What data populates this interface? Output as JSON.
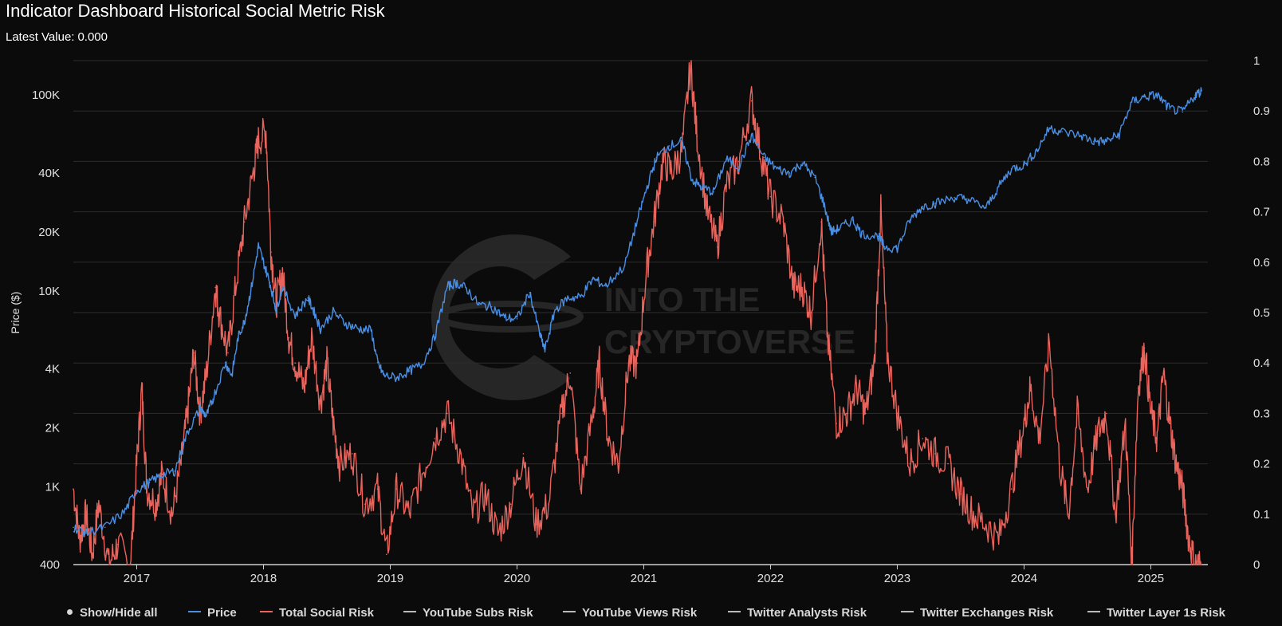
{
  "title": "Indicator Dashboard Historical Social Metric Risk",
  "latest_label": "Latest Value:",
  "latest_value": "0.000",
  "watermark": {
    "line1": "INTO THE",
    "line2": "CRYPTOVERSE"
  },
  "legend": {
    "show_hide_all": "Show/Hide all",
    "items": [
      {
        "label": "Price",
        "color": "#4a8fe4"
      },
      {
        "label": "Total Social Risk",
        "color": "#e9645c"
      },
      {
        "label": "YouTube Subs Risk",
        "color": "#bbbbbb"
      },
      {
        "label": "YouTube Views Risk",
        "color": "#bbbbbb"
      },
      {
        "label": "Twitter Analysts Risk",
        "color": "#bbbbbb"
      },
      {
        "label": "Twitter Exchanges Risk",
        "color": "#bbbbbb"
      },
      {
        "label": "Twitter Layer 1s Risk",
        "color": "#bbbbbb"
      }
    ]
  },
  "colors": {
    "background": "#0b0b0b",
    "grid": "#2c2c2c",
    "axis_text": "#e0e0e0",
    "price": "#4a8fe4",
    "risk": "#e9645c"
  },
  "chart_data": {
    "type": "line",
    "xlabel": "",
    "ylabel_left": "Price ($)",
    "ylabel_right": "",
    "x_tick_labels": [
      "2017",
      "2018",
      "2019",
      "2020",
      "2021",
      "2022",
      "2023",
      "2024",
      "2025"
    ],
    "x_range": [
      2016.5,
      2025.45
    ],
    "left_axis": {
      "scale": "log",
      "range": [
        400,
        150000
      ],
      "ticks": [
        {
          "value": 400,
          "label": "400"
        },
        {
          "value": 1000,
          "label": "1K"
        },
        {
          "value": 2000,
          "label": "2K"
        },
        {
          "value": 4000,
          "label": "4K"
        },
        {
          "value": 10000,
          "label": "10K"
        },
        {
          "value": 20000,
          "label": "20K"
        },
        {
          "value": 40000,
          "label": "40K"
        },
        {
          "value": 100000,
          "label": "100K"
        }
      ]
    },
    "right_axis": {
      "scale": "linear",
      "range": [
        0,
        1
      ],
      "ticks": [
        {
          "value": 0,
          "label": "0"
        },
        {
          "value": 0.1,
          "label": "0.1"
        },
        {
          "value": 0.2,
          "label": "0.2"
        },
        {
          "value": 0.3,
          "label": "0.3"
        },
        {
          "value": 0.4,
          "label": "0.4"
        },
        {
          "value": 0.5,
          "label": "0.5"
        },
        {
          "value": 0.6,
          "label": "0.6"
        },
        {
          "value": 0.7,
          "label": "0.7"
        },
        {
          "value": 0.8,
          "label": "0.8"
        },
        {
          "value": 0.9,
          "label": "0.9"
        },
        {
          "value": 1,
          "label": "1"
        }
      ]
    },
    "grid": true,
    "series": [
      {
        "name": "Price",
        "axis": "left",
        "points": [
          [
            2016.5,
            620
          ],
          [
            2016.6,
            580
          ],
          [
            2016.75,
            620
          ],
          [
            2016.9,
            740
          ],
          [
            2017.0,
            960
          ],
          [
            2017.1,
            1050
          ],
          [
            2017.2,
            1150
          ],
          [
            2017.3,
            1200
          ],
          [
            2017.4,
            1900
          ],
          [
            2017.5,
            2500
          ],
          [
            2017.55,
            2300
          ],
          [
            2017.6,
            2800
          ],
          [
            2017.7,
            4300
          ],
          [
            2017.75,
            3700
          ],
          [
            2017.8,
            5800
          ],
          [
            2017.85,
            7000
          ],
          [
            2017.9,
            10000
          ],
          [
            2017.96,
            17000
          ],
          [
            2018.0,
            14000
          ],
          [
            2018.05,
            11000
          ],
          [
            2018.1,
            8000
          ],
          [
            2018.15,
            10500
          ],
          [
            2018.25,
            7500
          ],
          [
            2018.35,
            9200
          ],
          [
            2018.4,
            7800
          ],
          [
            2018.45,
            6400
          ],
          [
            2018.55,
            7800
          ],
          [
            2018.65,
            6800
          ],
          [
            2018.75,
            6400
          ],
          [
            2018.85,
            6300
          ],
          [
            2018.9,
            4300
          ],
          [
            2018.95,
            3700
          ],
          [
            2019.05,
            3600
          ],
          [
            2019.15,
            3900
          ],
          [
            2019.25,
            4200
          ],
          [
            2019.35,
            5800
          ],
          [
            2019.45,
            10500
          ],
          [
            2019.52,
            11000
          ],
          [
            2019.6,
            10300
          ],
          [
            2019.7,
            8500
          ],
          [
            2019.8,
            8300
          ],
          [
            2019.9,
            7300
          ],
          [
            2020.0,
            7200
          ],
          [
            2020.1,
            9800
          ],
          [
            2020.18,
            6000
          ],
          [
            2020.22,
            5000
          ],
          [
            2020.3,
            8000
          ],
          [
            2020.4,
            9200
          ],
          [
            2020.5,
            9300
          ],
          [
            2020.6,
            11500
          ],
          [
            2020.7,
            10600
          ],
          [
            2020.85,
            13500
          ],
          [
            2020.95,
            23000
          ],
          [
            2021.02,
            33000
          ],
          [
            2021.1,
            48000
          ],
          [
            2021.2,
            55000
          ],
          [
            2021.3,
            58000
          ],
          [
            2021.38,
            37000
          ],
          [
            2021.45,
            34000
          ],
          [
            2021.55,
            32000
          ],
          [
            2021.65,
            47000
          ],
          [
            2021.75,
            43000
          ],
          [
            2021.85,
            62000
          ],
          [
            2021.95,
            48000
          ],
          [
            2022.05,
            42000
          ],
          [
            2022.15,
            40000
          ],
          [
            2022.25,
            45000
          ],
          [
            2022.35,
            38000
          ],
          [
            2022.42,
            28000
          ],
          [
            2022.48,
            20000
          ],
          [
            2022.55,
            21000
          ],
          [
            2022.65,
            23000
          ],
          [
            2022.72,
            19500
          ],
          [
            2022.85,
            19000
          ],
          [
            2022.9,
            16800
          ],
          [
            2023.0,
            16500
          ],
          [
            2023.1,
            23000
          ],
          [
            2023.2,
            27000
          ],
          [
            2023.3,
            28000
          ],
          [
            2023.45,
            30000
          ],
          [
            2023.55,
            29500
          ],
          [
            2023.7,
            26500
          ],
          [
            2023.8,
            34000
          ],
          [
            2023.9,
            42000
          ],
          [
            2024.0,
            44000
          ],
          [
            2024.1,
            52000
          ],
          [
            2024.2,
            68000
          ],
          [
            2024.3,
            65000
          ],
          [
            2024.45,
            62000
          ],
          [
            2024.55,
            58000
          ],
          [
            2024.65,
            58000
          ],
          [
            2024.75,
            63000
          ],
          [
            2024.85,
            92000
          ],
          [
            2024.95,
            98000
          ],
          [
            2025.05,
            100000
          ],
          [
            2025.15,
            85000
          ],
          [
            2025.25,
            82000
          ],
          [
            2025.35,
            100000
          ],
          [
            2025.4,
            105000
          ]
        ]
      },
      {
        "name": "Total Social Risk",
        "axis": "right",
        "points": [
          [
            2016.5,
            0.15
          ],
          [
            2016.55,
            0.05
          ],
          [
            2016.6,
            0.1
          ],
          [
            2016.65,
            0.02
          ],
          [
            2016.7,
            0.12
          ],
          [
            2016.78,
            0.0
          ],
          [
            2016.85,
            0.04
          ],
          [
            2016.95,
            0.0
          ],
          [
            2017.0,
            0.2
          ],
          [
            2017.04,
            0.35
          ],
          [
            2017.08,
            0.15
          ],
          [
            2017.15,
            0.12
          ],
          [
            2017.2,
            0.18
          ],
          [
            2017.28,
            0.1
          ],
          [
            2017.35,
            0.2
          ],
          [
            2017.4,
            0.3
          ],
          [
            2017.45,
            0.42
          ],
          [
            2017.5,
            0.3
          ],
          [
            2017.55,
            0.38
          ],
          [
            2017.62,
            0.55
          ],
          [
            2017.65,
            0.5
          ],
          [
            2017.72,
            0.42
          ],
          [
            2017.78,
            0.55
          ],
          [
            2017.85,
            0.68
          ],
          [
            2017.92,
            0.78
          ],
          [
            2017.96,
            0.84
          ],
          [
            2018.02,
            0.86
          ],
          [
            2018.06,
            0.62
          ],
          [
            2018.1,
            0.52
          ],
          [
            2018.15,
            0.58
          ],
          [
            2018.2,
            0.45
          ],
          [
            2018.25,
            0.4
          ],
          [
            2018.32,
            0.35
          ],
          [
            2018.38,
            0.45
          ],
          [
            2018.45,
            0.32
          ],
          [
            2018.5,
            0.4
          ],
          [
            2018.55,
            0.28
          ],
          [
            2018.6,
            0.2
          ],
          [
            2018.7,
            0.22
          ],
          [
            2018.8,
            0.12
          ],
          [
            2018.9,
            0.15
          ],
          [
            2018.97,
            0.02
          ],
          [
            2019.05,
            0.15
          ],
          [
            2019.15,
            0.1
          ],
          [
            2019.25,
            0.18
          ],
          [
            2019.35,
            0.25
          ],
          [
            2019.45,
            0.3
          ],
          [
            2019.55,
            0.22
          ],
          [
            2019.65,
            0.1
          ],
          [
            2019.75,
            0.14
          ],
          [
            2019.85,
            0.06
          ],
          [
            2019.95,
            0.12
          ],
          [
            2020.05,
            0.22
          ],
          [
            2020.15,
            0.08
          ],
          [
            2020.25,
            0.12
          ],
          [
            2020.35,
            0.3
          ],
          [
            2020.42,
            0.38
          ],
          [
            2020.5,
            0.15
          ],
          [
            2020.6,
            0.3
          ],
          [
            2020.65,
            0.4
          ],
          [
            2020.72,
            0.25
          ],
          [
            2020.8,
            0.2
          ],
          [
            2020.88,
            0.4
          ],
          [
            2020.95,
            0.4
          ],
          [
            2021.02,
            0.58
          ],
          [
            2021.08,
            0.68
          ],
          [
            2021.15,
            0.8
          ],
          [
            2021.22,
            0.78
          ],
          [
            2021.3,
            0.82
          ],
          [
            2021.37,
            0.99
          ],
          [
            2021.42,
            0.85
          ],
          [
            2021.5,
            0.7
          ],
          [
            2021.58,
            0.63
          ],
          [
            2021.65,
            0.75
          ],
          [
            2021.75,
            0.8
          ],
          [
            2021.85,
            0.92
          ],
          [
            2021.92,
            0.82
          ],
          [
            2022.0,
            0.73
          ],
          [
            2022.1,
            0.68
          ],
          [
            2022.18,
            0.55
          ],
          [
            2022.25,
            0.55
          ],
          [
            2022.32,
            0.5
          ],
          [
            2022.4,
            0.68
          ],
          [
            2022.45,
            0.45
          ],
          [
            2022.52,
            0.28
          ],
          [
            2022.6,
            0.3
          ],
          [
            2022.68,
            0.35
          ],
          [
            2022.75,
            0.3
          ],
          [
            2022.82,
            0.4
          ],
          [
            2022.87,
            0.7
          ],
          [
            2022.92,
            0.42
          ],
          [
            2023.0,
            0.3
          ],
          [
            2023.1,
            0.2
          ],
          [
            2023.2,
            0.25
          ],
          [
            2023.3,
            0.22
          ],
          [
            2023.4,
            0.2
          ],
          [
            2023.5,
            0.14
          ],
          [
            2023.6,
            0.1
          ],
          [
            2023.7,
            0.08
          ],
          [
            2023.8,
            0.05
          ],
          [
            2023.9,
            0.15
          ],
          [
            2024.0,
            0.28
          ],
          [
            2024.05,
            0.35
          ],
          [
            2024.12,
            0.25
          ],
          [
            2024.2,
            0.44
          ],
          [
            2024.28,
            0.2
          ],
          [
            2024.35,
            0.1
          ],
          [
            2024.42,
            0.3
          ],
          [
            2024.5,
            0.15
          ],
          [
            2024.58,
            0.26
          ],
          [
            2024.65,
            0.3
          ],
          [
            2024.72,
            0.1
          ],
          [
            2024.8,
            0.28
          ],
          [
            2024.85,
            0.0
          ],
          [
            2024.9,
            0.35
          ],
          [
            2024.95,
            0.43
          ],
          [
            2025.0,
            0.3
          ],
          [
            2025.05,
            0.25
          ],
          [
            2025.1,
            0.38
          ],
          [
            2025.15,
            0.28
          ],
          [
            2025.2,
            0.2
          ],
          [
            2025.25,
            0.15
          ],
          [
            2025.3,
            0.05
          ],
          [
            2025.35,
            0.0
          ],
          [
            2025.4,
            0.0
          ]
        ]
      }
    ]
  }
}
